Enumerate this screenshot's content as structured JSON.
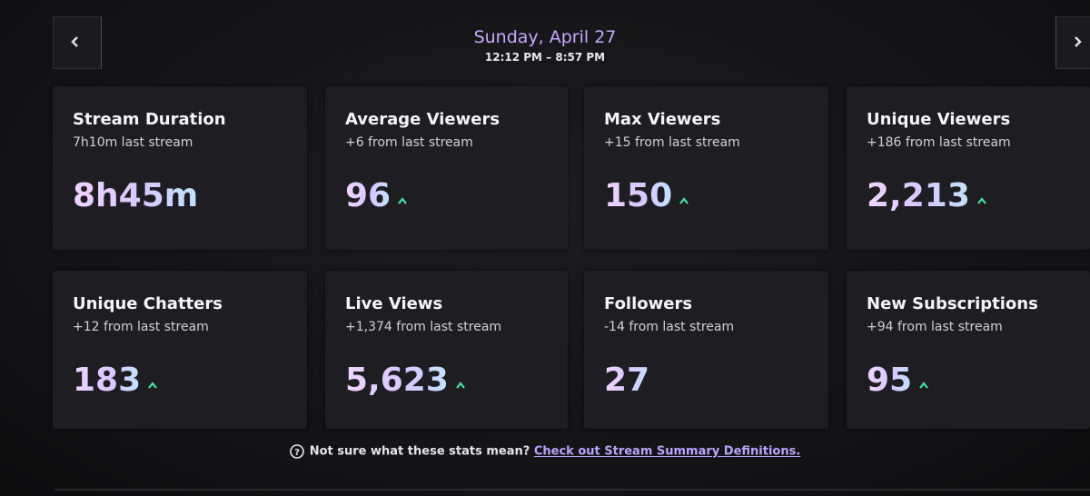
{
  "header": {
    "date": "Sunday, April 27",
    "time_range": "12:12 PM – 8:57 PM"
  },
  "cards": [
    {
      "title": "Stream Duration",
      "subtitle": "7h10m last stream",
      "value": "8h45m",
      "trend": "none"
    },
    {
      "title": "Average Viewers",
      "subtitle": "+6 from last stream",
      "value": "96",
      "trend": "up"
    },
    {
      "title": "Max Viewers",
      "subtitle": "+15 from last stream",
      "value": "150",
      "trend": "up"
    },
    {
      "title": "Unique Viewers",
      "subtitle": "+186 from last stream",
      "value": "2,213",
      "trend": "up"
    },
    {
      "title": "Unique Chatters",
      "subtitle": "+12 from last stream",
      "value": "183",
      "trend": "up"
    },
    {
      "title": "Live Views",
      "subtitle": "+1,374 from last stream",
      "value": "5,623",
      "trend": "up"
    },
    {
      "title": "Followers",
      "subtitle": "-14 from last stream",
      "value": "27",
      "trend": "none"
    },
    {
      "title": "New Subscriptions",
      "subtitle": "+94 from last stream",
      "value": "95",
      "trend": "up"
    }
  ],
  "footer": {
    "text": "Not sure what these stats mean?",
    "link": "Check out Stream Summary Definitions."
  }
}
